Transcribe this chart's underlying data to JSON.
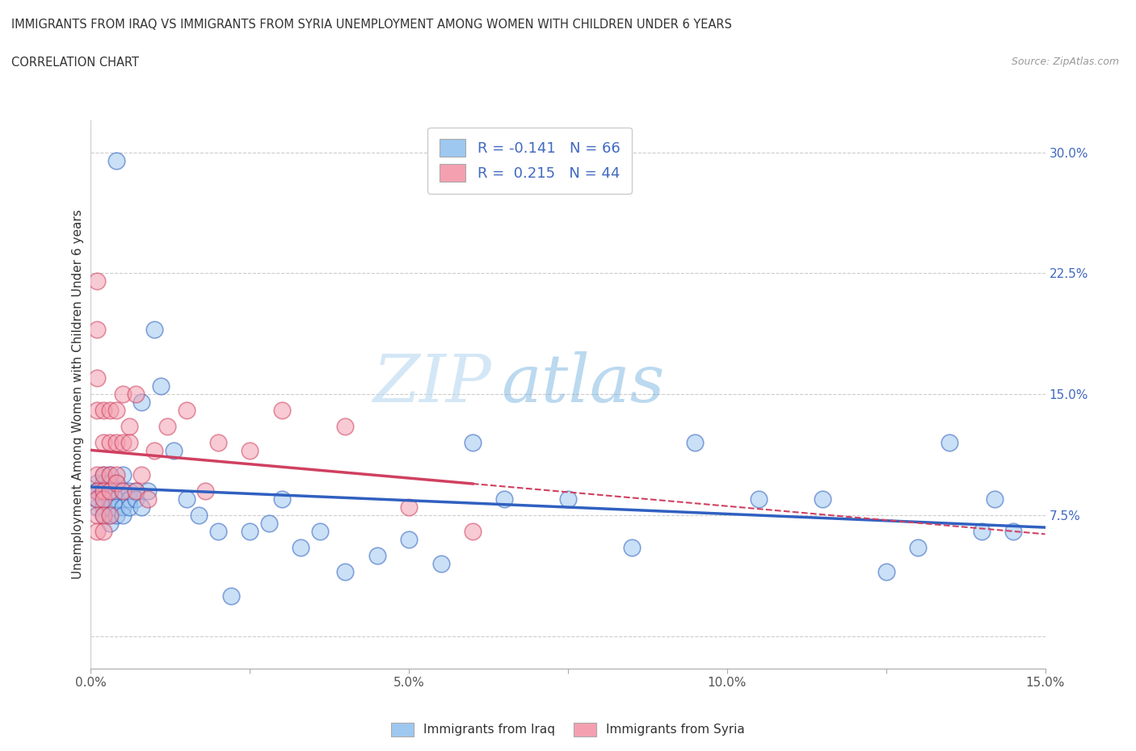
{
  "title_line1": "IMMIGRANTS FROM IRAQ VS IMMIGRANTS FROM SYRIA UNEMPLOYMENT AMONG WOMEN WITH CHILDREN UNDER 6 YEARS",
  "title_line2": "CORRELATION CHART",
  "source_text": "Source: ZipAtlas.com",
  "ylabel": "Unemployment Among Women with Children Under 6 years",
  "legend_label1": "Immigrants from Iraq",
  "legend_label2": "Immigrants from Syria",
  "R1": -0.141,
  "N1": 66,
  "R2": 0.215,
  "N2": 44,
  "xlim": [
    0.0,
    0.15
  ],
  "ylim": [
    -0.02,
    0.32
  ],
  "xticks": [
    0.0,
    0.025,
    0.05,
    0.075,
    0.1,
    0.125,
    0.15
  ],
  "xticklabels": [
    "0.0%",
    "",
    "5.0%",
    "",
    "10.0%",
    "",
    "15.0%"
  ],
  "right_yticks": [
    0.0,
    0.075,
    0.15,
    0.225,
    0.3
  ],
  "right_yticklabels": [
    "",
    "7.5%",
    "15.0%",
    "22.5%",
    "30.0%"
  ],
  "color_iraq": "#9EC8F0",
  "color_syria": "#F4A0B0",
  "trendline_iraq_color": "#3060C0",
  "trendline_syria_color": "#D04060",
  "watermark": "ZIPatlas",
  "iraq_x": [
    0.001,
    0.001,
    0.001,
    0.001,
    0.001,
    0.002,
    0.002,
    0.002,
    0.002,
    0.002,
    0.002,
    0.002,
    0.003,
    0.003,
    0.003,
    0.003,
    0.003,
    0.003,
    0.003,
    0.004,
    0.004,
    0.004,
    0.004,
    0.004,
    0.004,
    0.005,
    0.005,
    0.005,
    0.005,
    0.006,
    0.006,
    0.006,
    0.007,
    0.007,
    0.008,
    0.008,
    0.009,
    0.01,
    0.011,
    0.013,
    0.015,
    0.017,
    0.02,
    0.022,
    0.025,
    0.028,
    0.03,
    0.033,
    0.036,
    0.04,
    0.045,
    0.05,
    0.055,
    0.06,
    0.065,
    0.075,
    0.085,
    0.095,
    0.105,
    0.115,
    0.125,
    0.13,
    0.135,
    0.14,
    0.142,
    0.145
  ],
  "iraq_y": [
    0.09,
    0.095,
    0.09,
    0.08,
    0.085,
    0.1,
    0.09,
    0.095,
    0.085,
    0.09,
    0.08,
    0.075,
    0.1,
    0.095,
    0.09,
    0.085,
    0.08,
    0.075,
    0.07,
    0.295,
    0.095,
    0.09,
    0.085,
    0.08,
    0.075,
    0.1,
    0.09,
    0.08,
    0.075,
    0.09,
    0.085,
    0.08,
    0.09,
    0.085,
    0.145,
    0.08,
    0.09,
    0.19,
    0.155,
    0.115,
    0.085,
    0.075,
    0.065,
    0.025,
    0.065,
    0.07,
    0.085,
    0.055,
    0.065,
    0.04,
    0.05,
    0.06,
    0.045,
    0.12,
    0.085,
    0.085,
    0.055,
    0.12,
    0.085,
    0.085,
    0.04,
    0.055,
    0.12,
    0.065,
    0.085,
    0.065
  ],
  "syria_x": [
    0.001,
    0.001,
    0.001,
    0.001,
    0.001,
    0.001,
    0.001,
    0.001,
    0.001,
    0.002,
    0.002,
    0.002,
    0.002,
    0.002,
    0.002,
    0.002,
    0.003,
    0.003,
    0.003,
    0.003,
    0.003,
    0.004,
    0.004,
    0.004,
    0.004,
    0.005,
    0.005,
    0.005,
    0.006,
    0.006,
    0.007,
    0.007,
    0.008,
    0.009,
    0.01,
    0.012,
    0.015,
    0.018,
    0.02,
    0.025,
    0.03,
    0.04,
    0.05,
    0.06
  ],
  "syria_y": [
    0.19,
    0.22,
    0.16,
    0.1,
    0.14,
    0.09,
    0.085,
    0.075,
    0.065,
    0.14,
    0.1,
    0.12,
    0.09,
    0.085,
    0.075,
    0.065,
    0.14,
    0.12,
    0.1,
    0.09,
    0.075,
    0.14,
    0.12,
    0.1,
    0.095,
    0.15,
    0.12,
    0.09,
    0.13,
    0.12,
    0.15,
    0.09,
    0.1,
    0.085,
    0.115,
    0.13,
    0.14,
    0.09,
    0.12,
    0.115,
    0.14,
    0.13,
    0.08,
    0.065
  ]
}
